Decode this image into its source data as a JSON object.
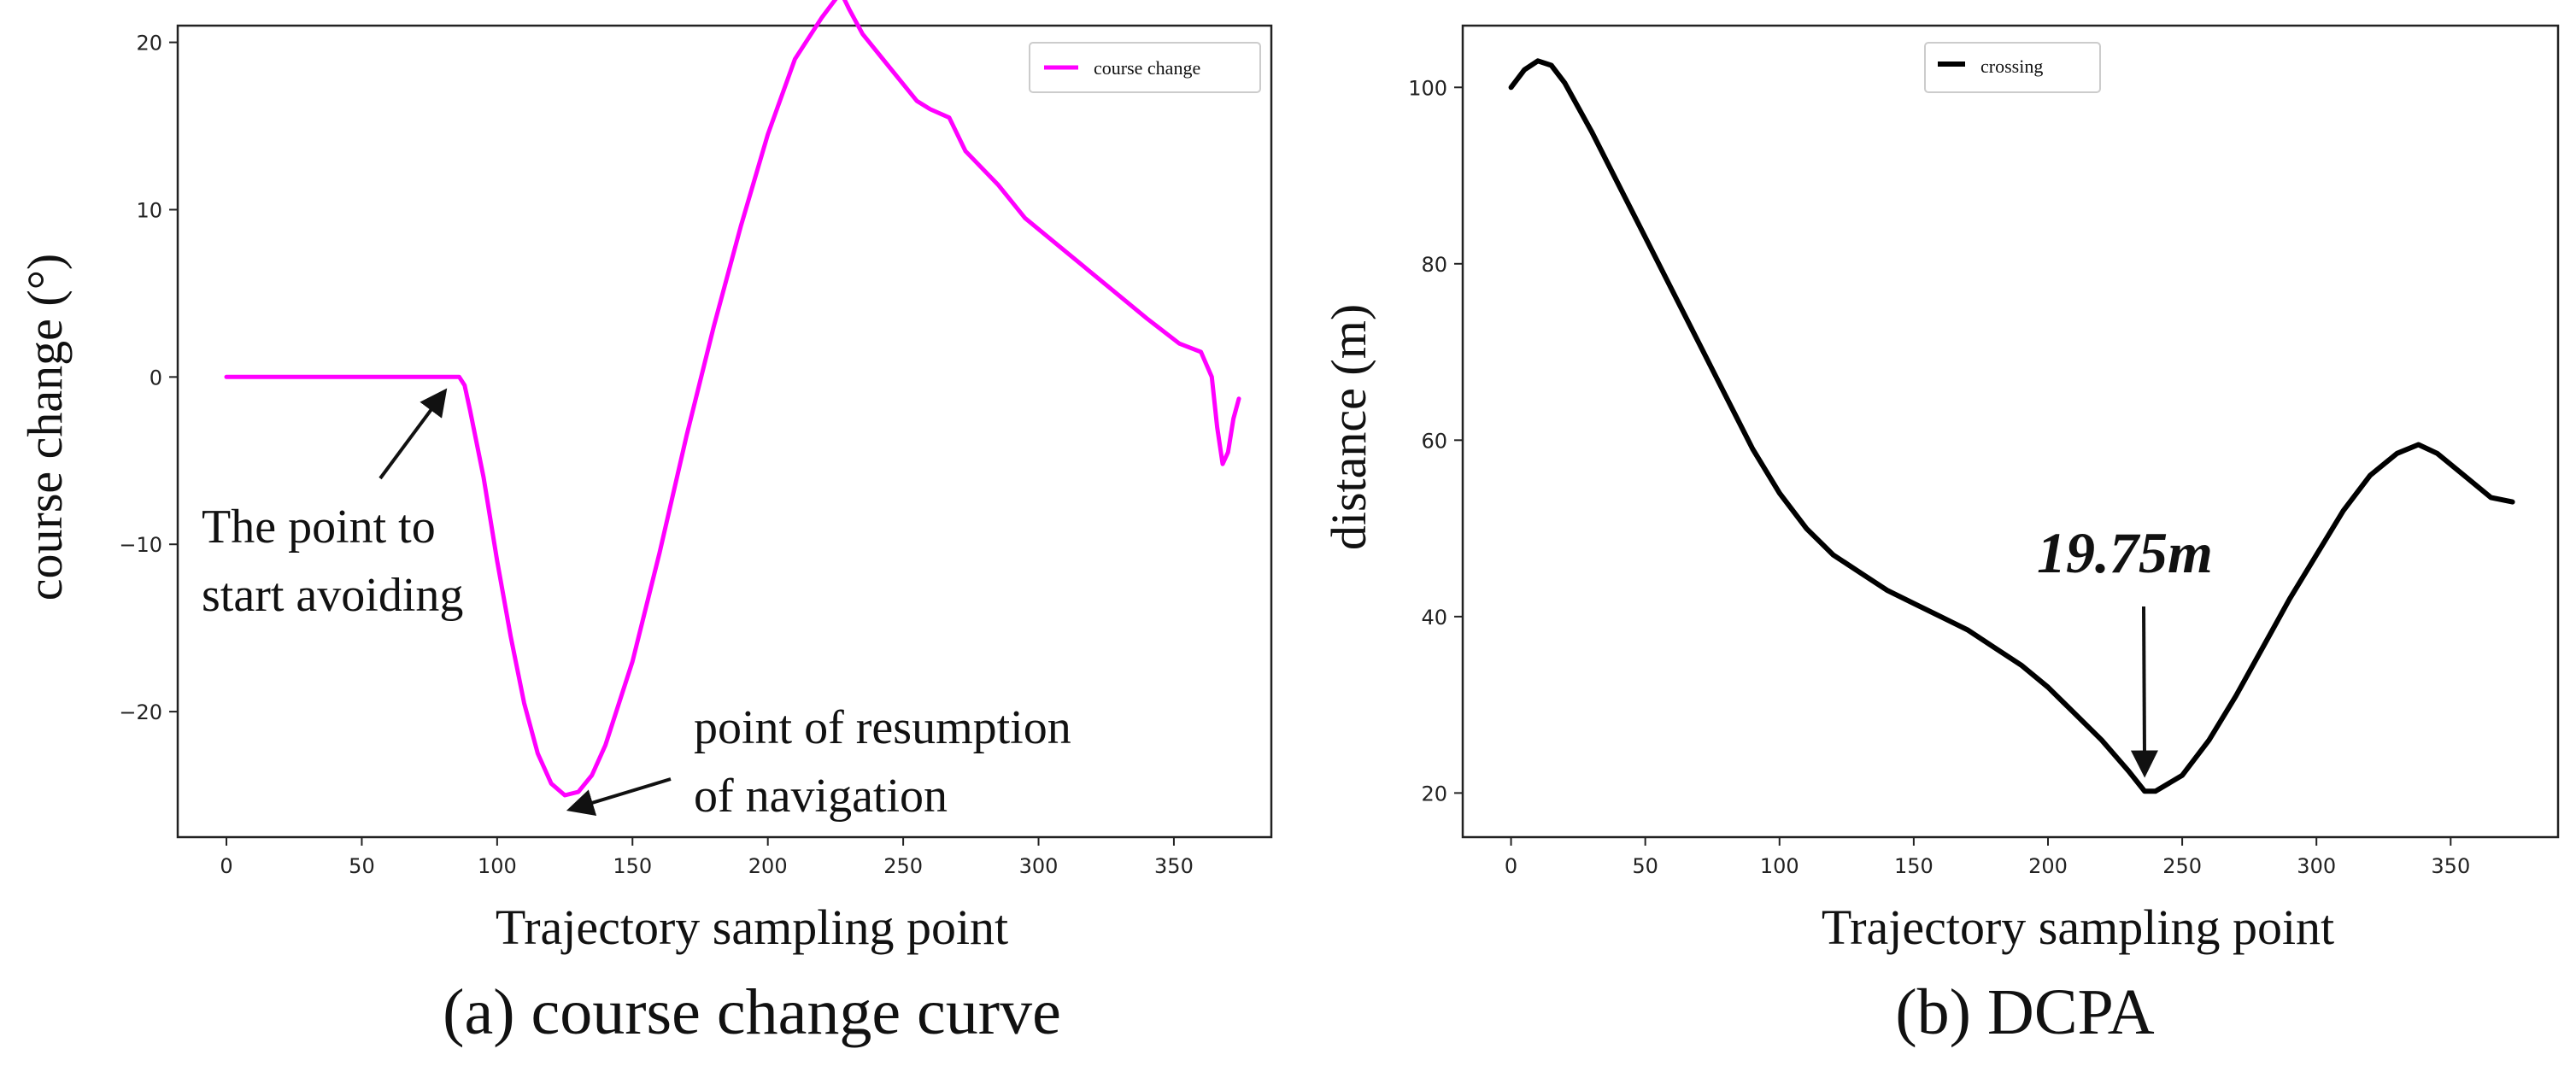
{
  "chart_data": [
    {
      "type": "line",
      "caption": "(a) course change curve",
      "xlabel": "Trajectory sampling point",
      "ylabel": "course change (°)",
      "xlim": [
        -18,
        386
      ],
      "ylim": [
        -27.5,
        21
      ],
      "xticks": [
        0,
        50,
        100,
        150,
        200,
        250,
        300,
        350
      ],
      "yticks": [
        -20,
        -10,
        0,
        10,
        20
      ],
      "grid": false,
      "legend_position": "top-right",
      "series": [
        {
          "name": "course change",
          "color": "#ff00ff",
          "x": [
            0,
            20,
            40,
            60,
            80,
            86,
            88,
            90,
            95,
            100,
            105,
            110,
            115,
            120,
            125,
            130,
            135,
            140,
            150,
            160,
            170,
            180,
            190,
            200,
            210,
            220,
            227,
            230,
            235,
            245,
            255,
            260,
            267,
            273,
            285,
            295,
            310,
            325,
            340,
            352,
            360,
            364,
            366,
            368,
            370,
            372,
            374
          ],
          "y": [
            0,
            0,
            0,
            0,
            0,
            0,
            -0.5,
            -2,
            -6,
            -11,
            -15.5,
            -19.5,
            -22.5,
            -24.3,
            -25,
            -24.8,
            -23.8,
            -22,
            -17,
            -10.5,
            -3.5,
            3,
            9,
            14.5,
            19,
            21.5,
            23,
            22,
            20.5,
            18.5,
            16.5,
            16,
            15.5,
            13.5,
            11.5,
            9.5,
            7.5,
            5.5,
            3.5,
            2,
            1.5,
            0,
            -3,
            -5.2,
            -4.5,
            -2.5,
            -1.3
          ]
        }
      ],
      "annotations": [
        {
          "text_lines": [
            "The point to",
            "start avoiding"
          ],
          "point_x": 80,
          "point_y": -1.0
        },
        {
          "text_lines": [
            "point of resumption",
            "of navigation"
          ],
          "point_x": 128,
          "point_y": -25.8
        }
      ]
    },
    {
      "type": "line",
      "caption": "(b) DCPA",
      "xlabel": "Trajectory sampling point",
      "ylabel": "distance (m)",
      "xlim": [
        -18,
        390
      ],
      "ylim": [
        15,
        107
      ],
      "xticks": [
        0,
        50,
        100,
        150,
        200,
        250,
        300,
        350
      ],
      "yticks": [
        20,
        40,
        60,
        80,
        100
      ],
      "grid": false,
      "legend_position": "top-center",
      "series": [
        {
          "name": "crossing",
          "color": "#000000",
          "x": [
            0,
            5,
            10,
            15,
            20,
            30,
            40,
            50,
            60,
            70,
            80,
            90,
            100,
            110,
            120,
            130,
            140,
            150,
            160,
            170,
            180,
            190,
            200,
            210,
            220,
            230,
            236,
            240,
            250,
            260,
            270,
            280,
            290,
            300,
            310,
            320,
            330,
            338,
            345,
            355,
            365,
            373
          ],
          "y": [
            100,
            102,
            103,
            102.5,
            100.5,
            95,
            89,
            83,
            77,
            71,
            65,
            59,
            54,
            50,
            47,
            45,
            43,
            41.5,
            40,
            38.5,
            36.5,
            34.5,
            32,
            29,
            26,
            22.5,
            20.2,
            20.2,
            22,
            26,
            31,
            36.5,
            42,
            47,
            52,
            56,
            58.5,
            59.5,
            58.5,
            56,
            53.5,
            53
          ]
        }
      ],
      "annotations": [
        {
          "text": "19.75m",
          "point_x": 236,
          "point_y": 22.5
        }
      ]
    }
  ]
}
